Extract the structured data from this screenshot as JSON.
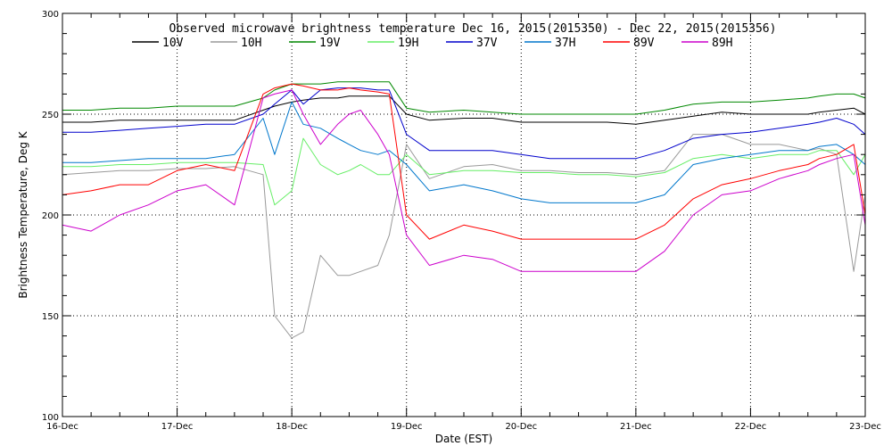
{
  "chart_data": {
    "type": "line",
    "title": "Observed microwave brightness temperature Dec 16, 2015(2015350) - Dec 22, 2015(2015356)",
    "xlabel": "Date (EST)",
    "ylabel": "Brightness Temperature, Deg K",
    "x_tick_labels": [
      "16-Dec",
      "17-Dec",
      "18-Dec",
      "19-Dec",
      "20-Dec",
      "21-Dec",
      "22-Dec",
      "23-Dec"
    ],
    "y_tick_labels": [
      "100",
      "150",
      "200",
      "250",
      "300"
    ],
    "xlim": [
      "2015-12-16",
      "2015-12-23"
    ],
    "ylim": [
      100,
      300
    ],
    "grid": "dotted",
    "legend_position": "top",
    "x": [
      0,
      0.25,
      0.5,
      0.75,
      1.0,
      1.25,
      1.5,
      1.75,
      1.85,
      2.0,
      2.1,
      2.25,
      2.4,
      2.5,
      2.6,
      2.75,
      2.85,
      3.0,
      3.2,
      3.5,
      3.75,
      4.0,
      4.25,
      4.5,
      4.75,
      5.0,
      5.25,
      5.5,
      5.75,
      6.0,
      6.25,
      6.5,
      6.6,
      6.75,
      6.9,
      7.0
    ],
    "series": [
      {
        "name": "10V",
        "color": "#000000",
        "values": [
          246,
          246,
          247,
          247,
          247,
          247,
          247,
          252,
          254,
          256,
          257,
          258,
          258,
          259,
          259,
          259,
          259,
          250,
          247,
          248,
          248,
          246,
          246,
          246,
          246,
          245,
          247,
          249,
          251,
          250,
          250,
          250,
          251,
          252,
          253,
          250
        ]
      },
      {
        "name": "10H",
        "color": "#999999",
        "values": [
          220,
          221,
          222,
          222,
          223,
          223,
          224,
          220,
          150,
          139,
          142,
          180,
          170,
          170,
          172,
          175,
          190,
          235,
          218,
          224,
          225,
          222,
          222,
          221,
          221,
          220,
          222,
          240,
          240,
          235,
          235,
          232,
          233,
          230,
          172,
          210
        ]
      },
      {
        "name": "19V",
        "color": "#008800",
        "values": [
          252,
          252,
          253,
          253,
          254,
          254,
          254,
          258,
          262,
          265,
          265,
          265,
          266,
          266,
          266,
          266,
          266,
          253,
          251,
          252,
          251,
          250,
          250,
          250,
          250,
          250,
          252,
          255,
          256,
          256,
          257,
          258,
          259,
          260,
          260,
          258
        ]
      },
      {
        "name": "19H",
        "color": "#66ee66",
        "values": [
          224,
          224,
          225,
          225,
          226,
          226,
          226,
          225,
          205,
          212,
          238,
          225,
          220,
          222,
          225,
          220,
          220,
          230,
          220,
          222,
          222,
          221,
          221,
          220,
          220,
          219,
          221,
          228,
          230,
          228,
          230,
          230,
          232,
          232,
          220,
          230
        ]
      },
      {
        "name": "37V",
        "color": "#0000cc",
        "values": [
          241,
          241,
          242,
          243,
          244,
          245,
          245,
          250,
          255,
          262,
          255,
          262,
          263,
          263,
          263,
          262,
          262,
          240,
          232,
          232,
          232,
          230,
          228,
          228,
          228,
          228,
          232,
          238,
          240,
          241,
          243,
          245,
          246,
          248,
          245,
          240
        ]
      },
      {
        "name": "37H",
        "color": "#0077cc",
        "values": [
          226,
          226,
          227,
          228,
          228,
          228,
          230,
          248,
          230,
          256,
          245,
          243,
          238,
          235,
          232,
          230,
          232,
          225,
          212,
          215,
          212,
          208,
          206,
          206,
          206,
          206,
          210,
          225,
          228,
          230,
          232,
          232,
          234,
          235,
          230,
          225
        ]
      },
      {
        "name": "89V",
        "color": "#ff0000",
        "values": [
          210,
          212,
          215,
          215,
          222,
          225,
          222,
          260,
          263,
          265,
          264,
          262,
          262,
          263,
          262,
          261,
          260,
          200,
          188,
          195,
          192,
          188,
          188,
          188,
          188,
          188,
          195,
          208,
          215,
          218,
          222,
          225,
          228,
          230,
          235,
          200
        ]
      },
      {
        "name": "89H",
        "color": "#cc00cc",
        "values": [
          195,
          192,
          200,
          205,
          212,
          215,
          205,
          258,
          260,
          262,
          250,
          235,
          245,
          250,
          252,
          240,
          230,
          190,
          175,
          180,
          178,
          172,
          172,
          172,
          172,
          172,
          182,
          200,
          210,
          212,
          218,
          222,
          225,
          228,
          230,
          195
        ]
      }
    ]
  }
}
